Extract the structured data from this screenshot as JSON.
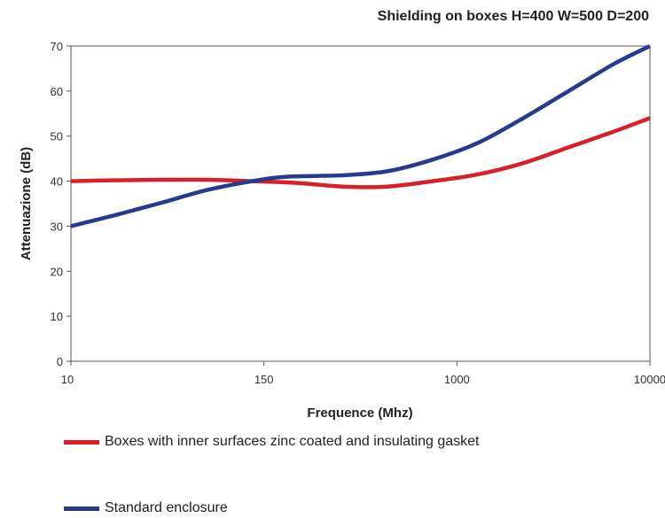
{
  "chart_data": {
    "type": "line",
    "title": "Shielding on boxes H=400 W=500 D=200",
    "xlabel": "Frequence (Mhz)",
    "ylabel": "Attenuazione (dB)",
    "x_ticks": [
      "10",
      "150",
      "1000",
      "10000"
    ],
    "y_ticks": [
      0,
      10,
      20,
      30,
      40,
      50,
      60,
      70
    ],
    "ylim": [
      0,
      70
    ],
    "grid": false,
    "legend_position": "bottom",
    "series": [
      {
        "name": "Boxes with inner surfaces zinc coated and insulating gasket",
        "color": "#d7202a",
        "points": [
          [
            0,
            40
          ],
          [
            0.25,
            40.2
          ],
          [
            0.5,
            40.3
          ],
          [
            0.75,
            40.3
          ],
          [
            1.0,
            40.0
          ],
          [
            1.25,
            39.6
          ],
          [
            1.5,
            38.8
          ],
          [
            1.75,
            38.8
          ],
          [
            2.0,
            40.0
          ],
          [
            2.25,
            41.5
          ],
          [
            2.5,
            44.0
          ],
          [
            2.75,
            47.5
          ],
          [
            3.0,
            51.0
          ],
          [
            3.2,
            54.0
          ]
        ]
      },
      {
        "name": "Standard enclosure",
        "color": "#253b8f",
        "points": [
          [
            0,
            30
          ],
          [
            0.25,
            32.5
          ],
          [
            0.5,
            35.2
          ],
          [
            0.75,
            38.0
          ],
          [
            1.0,
            40.0
          ],
          [
            1.2,
            41.0
          ],
          [
            1.5,
            41.3
          ],
          [
            1.75,
            42.2
          ],
          [
            2.0,
            44.8
          ],
          [
            2.25,
            48.5
          ],
          [
            2.5,
            54.0
          ],
          [
            2.75,
            60.0
          ],
          [
            3.0,
            66.0
          ],
          [
            3.2,
            70.0
          ]
        ]
      }
    ]
  }
}
